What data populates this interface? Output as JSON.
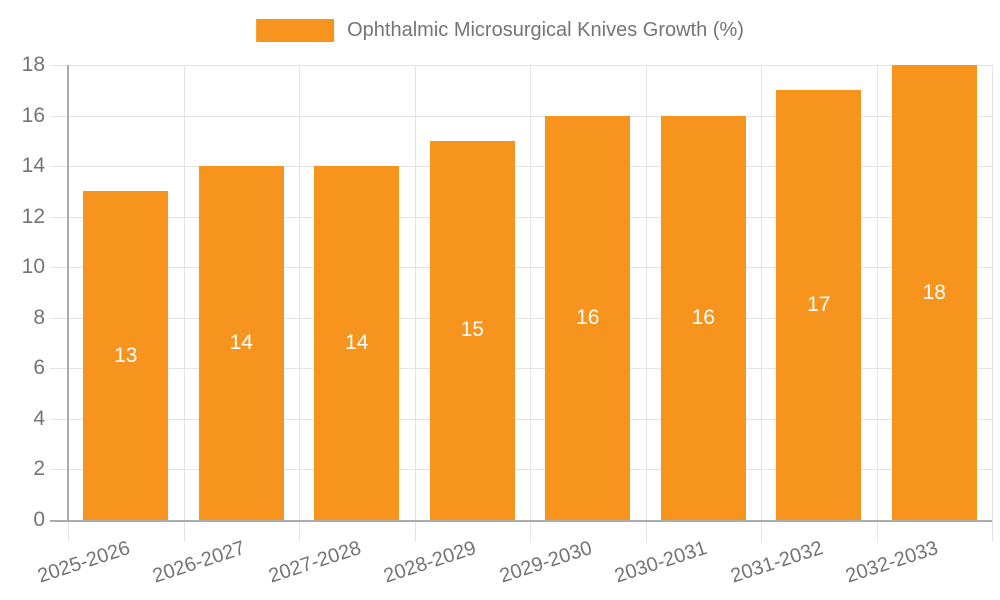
{
  "legend": {
    "label": "Ophthalmic Microsurgical Knives Growth (%)"
  },
  "colors": {
    "bar": "#F7941E",
    "grid": "#E4E4E4",
    "axis": "#AAAAAA",
    "text": "#757575",
    "value_label": "#FFFFFF",
    "background": "#FFFFFF"
  },
  "chart_data": {
    "type": "bar",
    "title": "Ophthalmic Microsurgical Knives Growth (%)",
    "series_name": "Ophthalmic Microsurgical Knives Growth (%)",
    "categories": [
      "2025-2026",
      "2026-2027",
      "2027-2028",
      "2028-2029",
      "2029-2030",
      "2030-2031",
      "2031-2032",
      "2032-2033"
    ],
    "values": [
      13,
      14,
      14,
      15,
      16,
      16,
      17,
      18
    ],
    "bar_labels": [
      13,
      14,
      14,
      15,
      16,
      16,
      17,
      18
    ],
    "xlabel": "",
    "ylabel": "",
    "ylim": [
      0,
      18
    ],
    "yticks": [
      0,
      2,
      4,
      6,
      8,
      10,
      12,
      14,
      16,
      18
    ],
    "grid": true,
    "legend_position": "top-center",
    "x_tick_rotation_deg": -18
  }
}
